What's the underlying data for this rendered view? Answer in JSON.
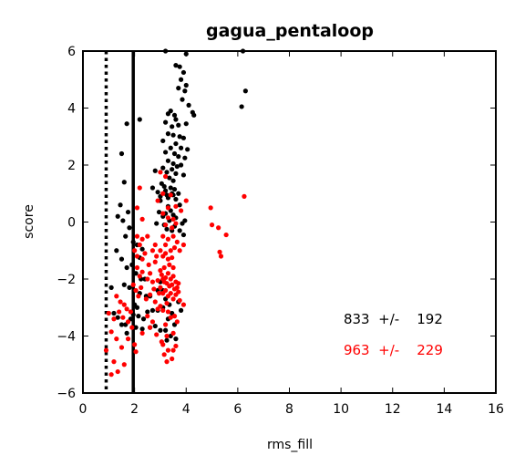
{
  "chart_data": {
    "type": "scatter",
    "title": "gagua_pentaloop",
    "xlabel": "rms_fill",
    "ylabel": "score",
    "xlim": [
      0,
      16
    ],
    "ylim": [
      -6,
      6
    ],
    "x_ticks": [
      0,
      2,
      4,
      6,
      8,
      10,
      12,
      14,
      16
    ],
    "y_ticks": [
      -6,
      -4,
      -2,
      0,
      2,
      4,
      6
    ],
    "x_tick_labels": [
      "0",
      "2",
      "4",
      "6",
      "8",
      "10",
      "12",
      "14",
      "16"
    ],
    "y_tick_labels": [
      "−6",
      "−4",
      "−2",
      "0",
      "2",
      "4",
      "6"
    ],
    "grid": false,
    "reference_lines": [
      {
        "x": 0.9,
        "style": "dotted",
        "color": "#000000"
      },
      {
        "x": 1.95,
        "style": "solid",
        "color": "#000000"
      }
    ],
    "annotations": [
      {
        "text": "833  +/-    192",
        "x": 10.1,
        "y": -3.4,
        "color": "#000000"
      },
      {
        "text": "963  +/-    229",
        "x": 10.1,
        "y": -4.5,
        "color": "#ff0000"
      }
    ],
    "series": [
      {
        "color": "#000000",
        "points": [
          [
            3.2,
            6.0
          ],
          [
            4.0,
            5.9
          ],
          [
            6.2,
            6.0
          ],
          [
            3.6,
            5.5
          ],
          [
            3.75,
            5.45
          ],
          [
            3.9,
            5.25
          ],
          [
            3.8,
            5.0
          ],
          [
            4.0,
            4.8
          ],
          [
            3.7,
            4.7
          ],
          [
            3.95,
            4.6
          ],
          [
            3.85,
            4.3
          ],
          [
            4.1,
            4.1
          ],
          [
            6.3,
            4.6
          ],
          [
            6.15,
            4.05
          ],
          [
            3.4,
            3.9
          ],
          [
            3.55,
            3.75
          ],
          [
            3.3,
            3.8
          ],
          [
            3.6,
            3.6
          ],
          [
            4.25,
            3.85
          ],
          [
            4.3,
            3.75
          ],
          [
            3.2,
            3.5
          ],
          [
            3.45,
            3.35
          ],
          [
            3.7,
            3.4
          ],
          [
            4.0,
            3.45
          ],
          [
            1.7,
            3.45
          ],
          [
            2.2,
            3.6
          ],
          [
            3.3,
            3.1
          ],
          [
            3.5,
            3.05
          ],
          [
            3.75,
            3.0
          ],
          [
            3.9,
            2.95
          ],
          [
            3.1,
            2.85
          ],
          [
            3.6,
            2.75
          ],
          [
            3.4,
            2.6
          ],
          [
            3.8,
            2.6
          ],
          [
            4.05,
            2.55
          ],
          [
            3.2,
            2.45
          ],
          [
            3.55,
            2.4
          ],
          [
            3.7,
            2.3
          ],
          [
            3.95,
            2.25
          ],
          [
            3.3,
            2.15
          ],
          [
            3.5,
            2.05
          ],
          [
            3.65,
            1.95
          ],
          [
            3.8,
            2.0
          ],
          [
            3.1,
            1.9
          ],
          [
            3.45,
            1.85
          ],
          [
            3.25,
            1.75
          ],
          [
            3.6,
            1.7
          ],
          [
            3.9,
            1.65
          ],
          [
            3.35,
            1.55
          ],
          [
            3.5,
            1.45
          ],
          [
            2.8,
            1.8
          ],
          [
            2.7,
            1.2
          ],
          [
            2.9,
            1.05
          ],
          [
            3.0,
            0.9
          ],
          [
            3.05,
            1.35
          ],
          [
            3.15,
            1.25
          ],
          [
            3.2,
            1.1
          ],
          [
            3.25,
            0.95
          ],
          [
            3.3,
            0.85
          ],
          [
            3.4,
            1.2
          ],
          [
            3.45,
            1.0
          ],
          [
            3.5,
            0.95
          ],
          [
            3.55,
            1.15
          ],
          [
            3.6,
            0.8
          ],
          [
            3.7,
            1.0
          ],
          [
            3.75,
            0.6
          ],
          [
            3.3,
            0.55
          ],
          [
            3.4,
            0.4
          ],
          [
            3.2,
            0.3
          ],
          [
            3.5,
            0.25
          ],
          [
            3.1,
            0.2
          ],
          [
            3.6,
            0.15
          ],
          [
            3.35,
            0.05
          ],
          [
            3.15,
            -0.1
          ],
          [
            3.25,
            -0.25
          ],
          [
            3.45,
            -0.3
          ],
          [
            3.55,
            -0.15
          ],
          [
            3.0,
            0.75
          ],
          [
            2.95,
            0.35
          ],
          [
            2.85,
            -0.05
          ],
          [
            3.85,
            -0.05
          ],
          [
            3.95,
            0.05
          ],
          [
            3.75,
            -0.3
          ],
          [
            3.9,
            -0.45
          ],
          [
            1.5,
            2.4
          ],
          [
            1.6,
            1.4
          ],
          [
            1.45,
            0.6
          ],
          [
            1.75,
            0.35
          ],
          [
            1.35,
            0.2
          ],
          [
            1.55,
            0.05
          ],
          [
            1.8,
            -0.2
          ],
          [
            1.65,
            -0.5
          ],
          [
            1.95,
            -0.7
          ],
          [
            2.1,
            -0.8
          ],
          [
            2.3,
            -0.95
          ],
          [
            2.2,
            -1.25
          ],
          [
            1.3,
            -1.0
          ],
          [
            1.5,
            -1.3
          ],
          [
            1.7,
            -1.6
          ],
          [
            1.9,
            -1.5
          ],
          [
            2.05,
            -1.8
          ],
          [
            2.25,
            -2.0
          ],
          [
            2.4,
            -2.0
          ],
          [
            1.6,
            -2.2
          ],
          [
            1.8,
            -2.3
          ],
          [
            2.0,
            -2.4
          ],
          [
            2.2,
            -2.5
          ],
          [
            2.45,
            -2.6
          ],
          [
            2.6,
            -2.6
          ],
          [
            2.9,
            -2.4
          ],
          [
            3.0,
            -2.1
          ],
          [
            3.1,
            -2.4
          ],
          [
            3.2,
            -2.7
          ],
          [
            3.35,
            -2.9
          ],
          [
            3.1,
            -3.0
          ],
          [
            2.9,
            -3.1
          ],
          [
            2.7,
            -3.1
          ],
          [
            2.5,
            -3.15
          ],
          [
            2.35,
            -3.4
          ],
          [
            2.15,
            -3.3
          ],
          [
            1.95,
            -3.25
          ],
          [
            1.85,
            -3.4
          ],
          [
            1.65,
            -3.6
          ],
          [
            1.5,
            -3.6
          ],
          [
            1.35,
            -3.35
          ],
          [
            1.1,
            -2.3
          ],
          [
            1.2,
            -3.2
          ],
          [
            2.0,
            -2.9
          ],
          [
            2.1,
            -3.0
          ],
          [
            3.3,
            -3.4
          ],
          [
            3.45,
            -3.2
          ],
          [
            3.55,
            -3.6
          ],
          [
            3.2,
            -3.8
          ],
          [
            3.0,
            -3.8
          ],
          [
            2.8,
            -3.65
          ],
          [
            2.6,
            -3.7
          ],
          [
            2.3,
            -3.75
          ],
          [
            2.05,
            -3.7
          ],
          [
            1.7,
            -3.9
          ],
          [
            3.4,
            -4.0
          ],
          [
            3.6,
            -4.1
          ],
          [
            3.25,
            -4.15
          ],
          [
            3.8,
            -3.1
          ],
          [
            3.7,
            -2.8
          ]
        ]
      },
      {
        "color": "#ff0000",
        "points": [
          [
            3.0,
            1.75
          ],
          [
            3.2,
            1.6
          ],
          [
            2.2,
            1.2
          ],
          [
            3.1,
            1.0
          ],
          [
            3.4,
            0.95
          ],
          [
            2.1,
            0.5
          ],
          [
            2.9,
            0.75
          ],
          [
            4.0,
            0.75
          ],
          [
            6.25,
            0.9
          ],
          [
            3.3,
            0.5
          ],
          [
            3.6,
            0.55
          ],
          [
            3.8,
            0.4
          ],
          [
            4.95,
            0.5
          ],
          [
            3.1,
            0.3
          ],
          [
            3.3,
            0.15
          ],
          [
            3.5,
            0.1
          ],
          [
            2.3,
            0.1
          ],
          [
            3.2,
            -0.1
          ],
          [
            3.45,
            -0.2
          ],
          [
            3.6,
            -0.05
          ],
          [
            5.0,
            -0.1
          ],
          [
            5.25,
            -0.2
          ],
          [
            2.1,
            -0.5
          ],
          [
            2.3,
            -0.6
          ],
          [
            2.5,
            -0.5
          ],
          [
            2.2,
            -0.8
          ],
          [
            2.8,
            -0.8
          ],
          [
            3.1,
            -0.5
          ],
          [
            3.2,
            -0.8
          ],
          [
            3.3,
            -0.6
          ],
          [
            3.5,
            -0.5
          ],
          [
            3.55,
            -0.9
          ],
          [
            3.65,
            -0.7
          ],
          [
            3.75,
            -1.0
          ],
          [
            3.9,
            -0.8
          ],
          [
            5.55,
            -0.45
          ],
          [
            5.3,
            -1.05
          ],
          [
            5.35,
            -1.2
          ],
          [
            3.0,
            -1.0
          ],
          [
            3.1,
            -1.2
          ],
          [
            3.2,
            -1.1
          ],
          [
            3.3,
            -1.3
          ],
          [
            3.35,
            -1.5
          ],
          [
            3.4,
            -1.0
          ],
          [
            3.45,
            -1.25
          ],
          [
            3.5,
            -1.6
          ],
          [
            3.15,
            -1.6
          ],
          [
            2.0,
            -1.0
          ],
          [
            2.1,
            -1.2
          ],
          [
            2.3,
            -1.3
          ],
          [
            2.4,
            -1.1
          ],
          [
            2.55,
            -1.5
          ],
          [
            2.7,
            -1.0
          ],
          [
            2.8,
            -1.4
          ],
          [
            2.85,
            -1.2
          ],
          [
            3.0,
            -1.7
          ],
          [
            3.05,
            -1.85
          ],
          [
            3.1,
            -2.0
          ],
          [
            3.15,
            -2.1
          ],
          [
            3.2,
            -1.95
          ],
          [
            3.25,
            -2.15
          ],
          [
            3.3,
            -1.8
          ],
          [
            3.35,
            -2.25
          ],
          [
            3.4,
            -2.0
          ],
          [
            3.45,
            -2.2
          ],
          [
            3.5,
            -1.9
          ],
          [
            3.55,
            -2.35
          ],
          [
            3.6,
            -2.1
          ],
          [
            3.65,
            -2.3
          ],
          [
            3.7,
            -2.15
          ],
          [
            3.0,
            -2.3
          ],
          [
            3.1,
            -2.5
          ],
          [
            3.2,
            -2.4
          ],
          [
            3.3,
            -2.6
          ],
          [
            3.4,
            -2.5
          ],
          [
            3.5,
            -2.7
          ],
          [
            3.6,
            -2.55
          ],
          [
            3.7,
            -2.45
          ],
          [
            3.75,
            -2.75
          ],
          [
            3.9,
            -2.9
          ],
          [
            3.25,
            -2.85
          ],
          [
            2.1,
            -1.6
          ],
          [
            2.2,
            -1.9
          ],
          [
            2.3,
            -1.75
          ],
          [
            2.5,
            -2.0
          ],
          [
            2.6,
            -1.8
          ],
          [
            2.7,
            -2.1
          ],
          [
            2.75,
            -2.35
          ],
          [
            2.9,
            -2.05
          ],
          [
            2.95,
            -2.5
          ],
          [
            1.95,
            -2.2
          ],
          [
            2.05,
            -2.4
          ],
          [
            2.15,
            -2.6
          ],
          [
            2.25,
            -2.3
          ],
          [
            2.45,
            -2.7
          ],
          [
            2.6,
            -2.55
          ],
          [
            2.8,
            -2.8
          ],
          [
            2.9,
            -3.05
          ],
          [
            3.0,
            -2.95
          ],
          [
            3.1,
            -3.1
          ],
          [
            3.3,
            -3.15
          ],
          [
            3.4,
            -3.35
          ],
          [
            3.55,
            -3.3
          ],
          [
            3.65,
            -3.5
          ],
          [
            3.5,
            -3.9
          ],
          [
            3.2,
            -3.6
          ],
          [
            1.3,
            -2.6
          ],
          [
            1.45,
            -2.8
          ],
          [
            1.6,
            -2.9
          ],
          [
            1.7,
            -3.05
          ],
          [
            1.85,
            -3.15
          ],
          [
            1.4,
            -3.15
          ],
          [
            1.55,
            -3.35
          ],
          [
            1.75,
            -3.5
          ],
          [
            1.9,
            -3.7
          ],
          [
            1.2,
            -3.4
          ],
          [
            1.0,
            -3.2
          ],
          [
            1.1,
            -3.85
          ],
          [
            1.3,
            -4.1
          ],
          [
            1.5,
            -4.4
          ],
          [
            1.75,
            -4.1
          ],
          [
            2.0,
            -4.3
          ],
          [
            2.05,
            -4.55
          ],
          [
            0.9,
            -4.5
          ],
          [
            1.2,
            -4.9
          ],
          [
            1.35,
            -5.25
          ],
          [
            1.1,
            -5.35
          ],
          [
            1.6,
            -5.0
          ],
          [
            2.5,
            -3.3
          ],
          [
            2.7,
            -3.5
          ],
          [
            2.3,
            -3.9
          ],
          [
            2.85,
            -3.95
          ],
          [
            3.05,
            -4.2
          ],
          [
            3.25,
            -4.0
          ],
          [
            3.1,
            -4.3
          ],
          [
            3.3,
            -4.5
          ],
          [
            3.25,
            -4.9
          ],
          [
            3.45,
            -4.8
          ],
          [
            3.15,
            -4.65
          ],
          [
            3.6,
            -4.35
          ],
          [
            3.5,
            -4.5
          ],
          [
            2.6,
            -3.7
          ]
        ]
      }
    ]
  }
}
